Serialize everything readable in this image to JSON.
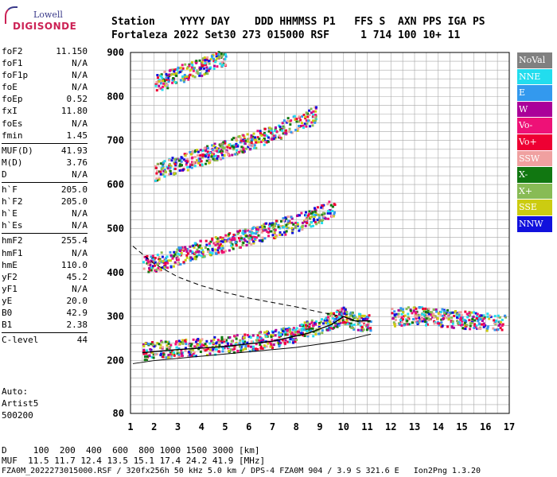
{
  "logo": {
    "top": "Lowell",
    "bottom": "DIGISONDE"
  },
  "header": {
    "line1": "Station    YYYY DAY    DDD HHMMSS P1   FFS S  AXN PPS IGA PS",
    "line2": "Fortaleza 2022 Set30 273 015000 RSF     1 714 100 10+ 11"
  },
  "params": [
    {
      "k": "foF2",
      "v": "11.150"
    },
    {
      "k": "foF1",
      "v": "N/A"
    },
    {
      "k": "foF1p",
      "v": "N/A"
    },
    {
      "k": "foE",
      "v": "N/A"
    },
    {
      "k": "foEp",
      "v": "0.52"
    },
    {
      "k": "fxI",
      "v": "11.80"
    },
    {
      "k": "foEs",
      "v": "N/A"
    },
    {
      "k": "fmin",
      "v": "1.45"
    },
    {
      "k": "MUF(D)",
      "v": "41.93"
    },
    {
      "k": "M(D)",
      "v": "3.76"
    },
    {
      "k": "D",
      "v": "N/A"
    },
    {
      "k": "h`F",
      "v": "205.0"
    },
    {
      "k": "h`F2",
      "v": "205.0"
    },
    {
      "k": "h`E",
      "v": "N/A"
    },
    {
      "k": "h`Es",
      "v": "N/A"
    },
    {
      "k": "hmF2",
      "v": "255.4"
    },
    {
      "k": "hmF1",
      "v": "N/A"
    },
    {
      "k": "hmE",
      "v": "110.0"
    },
    {
      "k": "yF2",
      "v": "45.2"
    },
    {
      "k": "yF1",
      "v": "N/A"
    },
    {
      "k": "yE",
      "v": "20.0"
    },
    {
      "k": "B0",
      "v": "42.9"
    },
    {
      "k": "B1",
      "v": "2.38"
    },
    {
      "k": "C-level",
      "v": "44"
    }
  ],
  "auto": [
    "Auto:",
    "Artist5",
    "500200"
  ],
  "legend": [
    {
      "label": "NoVal",
      "color": "#808080"
    },
    {
      "label": "NNE",
      "color": "#22ddee"
    },
    {
      "label": "E",
      "color": "#3399ee"
    },
    {
      "label": "W",
      "color": "#aa0099"
    },
    {
      "label": "Vo-",
      "color": "#ee1177"
    },
    {
      "label": "Vo+",
      "color": "#ee0033"
    },
    {
      "label": "SSW",
      "color": "#f0a0a0"
    },
    {
      "label": "X-",
      "color": "#117711"
    },
    {
      "label": "X+",
      "color": "#88bb55"
    },
    {
      "label": "SSE",
      "color": "#cccc11"
    },
    {
      "label": "NNW",
      "color": "#1111dd"
    }
  ],
  "footer": {
    "line1": "D     100  200  400  600  800 1000 1500 3000 [km]",
    "line2": "MUF  11.5 11.7 12.4 13.5 15.1 17.4 24.2 41.9 [MHz]",
    "line3": "FZA0M_2022273015000.RSF / 320fx256h 50 kHz 5.0 km / DPS-4 FZA0M 904 / 3.9 S 321.6 E   Ion2Png 1.3.20"
  },
  "chart_data": {
    "type": "scatter",
    "x_ticks": [
      1,
      2,
      3,
      4,
      5,
      6,
      7,
      8,
      9,
      10,
      11,
      12,
      13,
      14,
      15,
      16,
      17
    ],
    "y_ticks": [
      80,
      200,
      300,
      400,
      500,
      600,
      700,
      800,
      900
    ],
    "xlim": [
      1,
      17
    ],
    "ylim": [
      80,
      900
    ],
    "grid": true,
    "traces": [
      {
        "name": "F2 trace",
        "points": [
          [
            1.5,
            222
          ],
          [
            2,
            226
          ],
          [
            3,
            230
          ],
          [
            4,
            234
          ],
          [
            5,
            238
          ],
          [
            6,
            244
          ],
          [
            7,
            252
          ],
          [
            8,
            264
          ],
          [
            9,
            282
          ],
          [
            9.6,
            296
          ],
          [
            10,
            305
          ],
          [
            10.5,
            290
          ],
          [
            11,
            288
          ],
          [
            11.15,
            290
          ]
        ]
      },
      {
        "name": "2nd hop",
        "points": [
          [
            1.5,
            420
          ],
          [
            2,
            424
          ],
          [
            3,
            440
          ],
          [
            4,
            456
          ],
          [
            5,
            470
          ],
          [
            6,
            486
          ],
          [
            7,
            500
          ],
          [
            8,
            516
          ],
          [
            9,
            534
          ],
          [
            9.6,
            552
          ]
        ]
      },
      {
        "name": "3rd hop",
        "points": [
          [
            2,
            630
          ],
          [
            3,
            648
          ],
          [
            4,
            666
          ],
          [
            5,
            684
          ],
          [
            6,
            700
          ],
          [
            7,
            720
          ],
          [
            8,
            742
          ],
          [
            8.8,
            760
          ]
        ]
      },
      {
        "name": "4th hop",
        "points": [
          [
            2,
            830
          ],
          [
            3,
            852
          ],
          [
            4,
            870
          ],
          [
            5,
            890
          ]
        ]
      },
      {
        "name": "spread",
        "points": [
          [
            12,
            300
          ],
          [
            13,
            305
          ],
          [
            14,
            300
          ],
          [
            15,
            295
          ],
          [
            16,
            290
          ],
          [
            16.8,
            290
          ]
        ]
      }
    ],
    "profile_line": [
      [
        1.1,
        193
      ],
      [
        2,
        200
      ],
      [
        4,
        210
      ],
      [
        6,
        220
      ],
      [
        8,
        230
      ],
      [
        10,
        245
      ],
      [
        11,
        258
      ],
      [
        11.15,
        260
      ]
    ],
    "trace_line": [
      [
        1.5,
        218
      ],
      [
        3,
        225
      ],
      [
        5,
        232
      ],
      [
        7,
        244
      ],
      [
        8.5,
        262
      ],
      [
        9.5,
        282
      ],
      [
        10,
        300
      ],
      [
        10.5,
        290
      ],
      [
        11,
        290
      ],
      [
        11.15,
        290
      ]
    ],
    "dashed_line": [
      [
        1.1,
        460
      ],
      [
        2,
        420
      ],
      [
        3,
        390
      ],
      [
        4,
        370
      ],
      [
        5,
        355
      ],
      [
        6,
        342
      ],
      [
        7,
        332
      ],
      [
        8,
        322
      ],
      [
        9,
        310
      ],
      [
        10,
        300
      ]
    ]
  }
}
